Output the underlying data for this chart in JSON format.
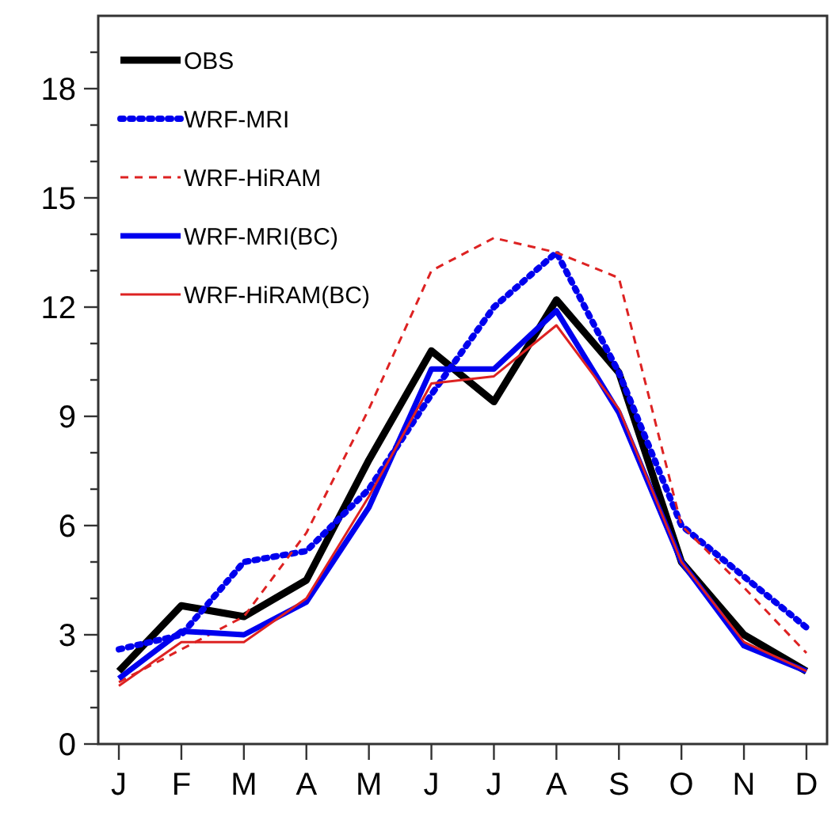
{
  "chart_data": {
    "type": "line",
    "categories": [
      "J",
      "F",
      "M",
      "A",
      "M",
      "J",
      "J",
      "A",
      "S",
      "O",
      "N",
      "D"
    ],
    "ylim": [
      0,
      20
    ],
    "yticks": [
      0,
      {
        "value": 1,
        "label": null
      },
      {
        "value": 2,
        "label": null
      },
      3,
      {
        "value": 4,
        "label": null
      },
      {
        "value": 5,
        "label": null
      },
      6,
      {
        "value": 7,
        "label": null
      },
      {
        "value": 8,
        "label": null
      },
      9,
      {
        "value": 10,
        "label": null
      },
      {
        "value": 11,
        "label": null
      },
      12,
      {
        "value": 13,
        "label": null
      },
      {
        "value": 14,
        "label": null
      },
      15,
      {
        "value": 16,
        "label": null
      },
      {
        "value": 17,
        "label": null
      },
      18,
      {
        "value": 19,
        "label": null
      }
    ],
    "grid": false,
    "legend": "top left",
    "series": [
      {
        "name": "OBS",
        "color": "#000000",
        "line_style": "solid",
        "values": [
          2.0,
          3.8,
          3.5,
          4.5,
          7.8,
          10.8,
          9.4,
          12.2,
          10.2,
          5.0,
          3.0,
          2.0
        ]
      },
      {
        "name": "WRF-MRI",
        "color": "#0000ee",
        "line_style": "dotted",
        "values": [
          2.6,
          3.0,
          5.0,
          5.3,
          7.0,
          9.6,
          12.0,
          13.5,
          10.2,
          6.0,
          4.6,
          3.2
        ]
      },
      {
        "name": "WRF-HiRAM",
        "color": "#dd2222",
        "line_style": "dashed",
        "values": [
          1.7,
          2.6,
          3.5,
          5.8,
          9.2,
          13.0,
          13.9,
          13.5,
          12.8,
          6.0,
          4.3,
          2.5
        ]
      },
      {
        "name": "WRF-MRI(BC)",
        "color": "#0000ee",
        "line_style": "solid",
        "values": [
          1.8,
          3.1,
          3.0,
          3.9,
          6.5,
          10.3,
          10.3,
          11.9,
          9.1,
          5.0,
          2.7,
          2.0
        ]
      },
      {
        "name": "WRF-HiRAM(BC)",
        "color": "#dd2222",
        "line_style": "solid",
        "values": [
          1.6,
          2.8,
          2.8,
          4.0,
          6.8,
          9.9,
          10.1,
          11.5,
          9.2,
          5.0,
          2.8,
          2.0
        ]
      }
    ]
  }
}
